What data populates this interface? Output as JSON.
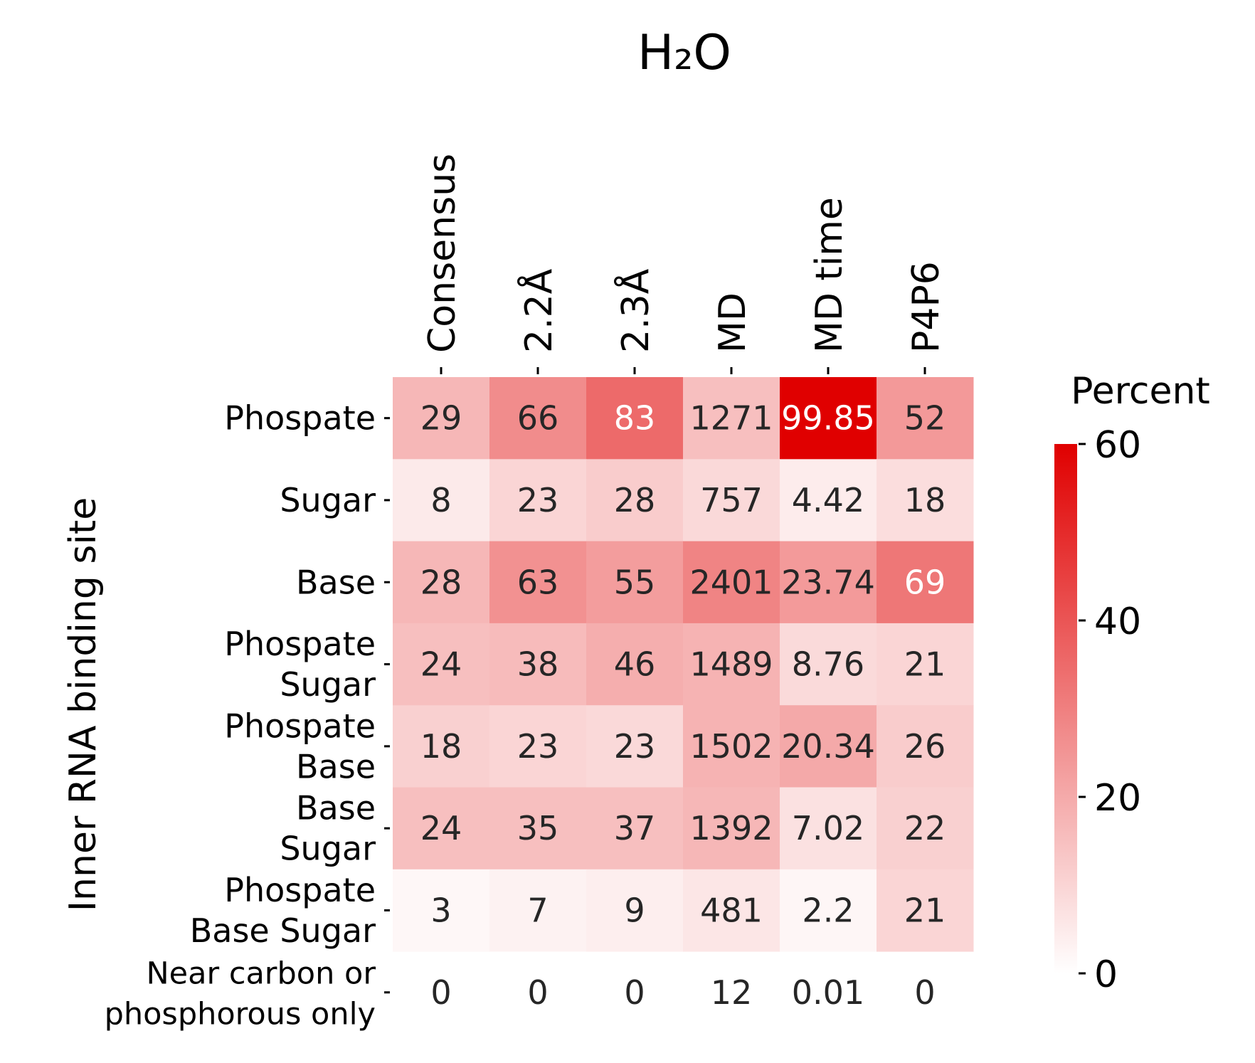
{
  "chart_data": {
    "type": "heatmap",
    "title": "H₂O",
    "ylabel": "Inner RNA binding site",
    "columns": [
      "Consensus",
      "2.2Å",
      "2.3Å",
      "MD",
      "MD time",
      "P4P6"
    ],
    "rows": [
      {
        "label": [
          "Phospate"
        ],
        "cells": [
          "29",
          "66",
          "83",
          "1271",
          "99.85",
          "52"
        ],
        "percent": [
          17,
          27,
          35,
          15,
          100,
          24
        ],
        "white_text": [
          false,
          false,
          true,
          false,
          true,
          false
        ]
      },
      {
        "label": [
          "Sugar"
        ],
        "cells": [
          "8",
          "23",
          "28",
          "757",
          "4.42",
          "18"
        ],
        "percent": [
          5,
          10,
          12,
          9,
          4.42,
          8
        ],
        "white_text": [
          false,
          false,
          false,
          false,
          false,
          false
        ]
      },
      {
        "label": [
          "Base"
        ],
        "cells": [
          "28",
          "63",
          "55",
          "2401",
          "23.74",
          "69"
        ],
        "percent": [
          17,
          26,
          23,
          29,
          23.74,
          32
        ],
        "white_text": [
          false,
          false,
          false,
          false,
          false,
          true
        ]
      },
      {
        "label": [
          "Phospate",
          "Sugar"
        ],
        "cells": [
          "24",
          "38",
          "46",
          "1489",
          "8.76",
          "21"
        ],
        "percent": [
          15,
          16,
          19,
          18,
          8.76,
          10
        ],
        "white_text": [
          false,
          false,
          false,
          false,
          false,
          false
        ]
      },
      {
        "label": [
          "Phospate",
          "Base"
        ],
        "cells": [
          "18",
          "23",
          "23",
          "1502",
          "20.34",
          "26"
        ],
        "percent": [
          11,
          10,
          9,
          18,
          20.34,
          12
        ],
        "white_text": [
          false,
          false,
          false,
          false,
          false,
          false
        ]
      },
      {
        "label": [
          "Base",
          "Sugar"
        ],
        "cells": [
          "24",
          "35",
          "37",
          "1392",
          "7.02",
          "22"
        ],
        "percent": [
          15,
          15,
          15,
          17,
          7.02,
          11
        ],
        "white_text": [
          false,
          false,
          false,
          false,
          false,
          false
        ]
      },
      {
        "label": [
          "Phospate",
          "Base Sugar"
        ],
        "cells": [
          "3",
          "7",
          "9",
          "481",
          "2.2",
          "21"
        ],
        "percent": [
          2,
          3,
          4,
          6,
          2.2,
          10
        ],
        "white_text": [
          false,
          false,
          false,
          false,
          false,
          false
        ]
      },
      {
        "label": [
          "Near carbon or",
          "phosphorous only"
        ],
        "cells": [
          "0",
          "0",
          "0",
          "12",
          "0.01",
          "0"
        ],
        "percent": [
          0,
          0,
          0,
          0,
          0,
          0
        ],
        "white_text": [
          false,
          false,
          false,
          false,
          false,
          false
        ]
      }
    ],
    "colorbar": {
      "label": "Percent",
      "ticks": [
        "0",
        "20",
        "40",
        "60"
      ],
      "tick_values": [
        0,
        20,
        40,
        60
      ],
      "range": [
        0,
        60
      ],
      "color_low": "#ffffff",
      "color_high": "#e00000"
    },
    "grid": false,
    "legend": "right"
  }
}
